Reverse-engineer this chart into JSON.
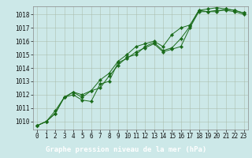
{
  "title": "Graphe pression niveau de la mer (hPa)",
  "background_color": "#cce8e8",
  "plot_bg_color": "#cce8e8",
  "xlabel_bg_color": "#1a5c1a",
  "xlabel_text_color": "#ffffff",
  "line_color": "#1a6b1a",
  "marker_color": "#1a6b1a",
  "xlim": [
    -0.5,
    23.5
  ],
  "ylim": [
    1009.4,
    1018.6
  ],
  "yticks": [
    1010,
    1011,
    1012,
    1013,
    1014,
    1015,
    1016,
    1017,
    1018
  ],
  "xticks": [
    0,
    1,
    2,
    3,
    4,
    5,
    6,
    7,
    8,
    9,
    10,
    11,
    12,
    13,
    14,
    15,
    16,
    17,
    18,
    19,
    20,
    21,
    22,
    23
  ],
  "series": [
    [
      1009.7,
      1010.0,
      1010.6,
      1011.8,
      1012.0,
      1011.6,
      1011.5,
      1012.8,
      1013.0,
      1014.4,
      1014.7,
      1015.2,
      1015.5,
      1015.8,
      1015.2,
      1015.4,
      1015.6,
      1017.0,
      1018.2,
      1018.2,
      1018.3,
      1018.3,
      1018.2,
      1018.0
    ],
    [
      1009.7,
      1010.0,
      1010.6,
      1011.8,
      1012.2,
      1011.8,
      1012.3,
      1012.5,
      1013.4,
      1014.2,
      1014.8,
      1015.0,
      1015.6,
      1015.9,
      1015.3,
      1015.5,
      1016.2,
      1017.1,
      1018.3,
      1018.2,
      1018.2,
      1018.4,
      1018.3,
      1018.1
    ],
    [
      1009.7,
      1010.0,
      1010.8,
      1011.8,
      1012.2,
      1012.0,
      1012.3,
      1013.1,
      1013.6,
      1014.5,
      1015.0,
      1015.6,
      1015.8,
      1016.0,
      1015.6,
      1016.5,
      1017.0,
      1017.2,
      1018.3,
      1018.4,
      1018.5,
      1018.4,
      1018.3,
      1018.1
    ]
  ],
  "tick_fontsize": 5.5,
  "xlabel_fontsize": 6.5
}
